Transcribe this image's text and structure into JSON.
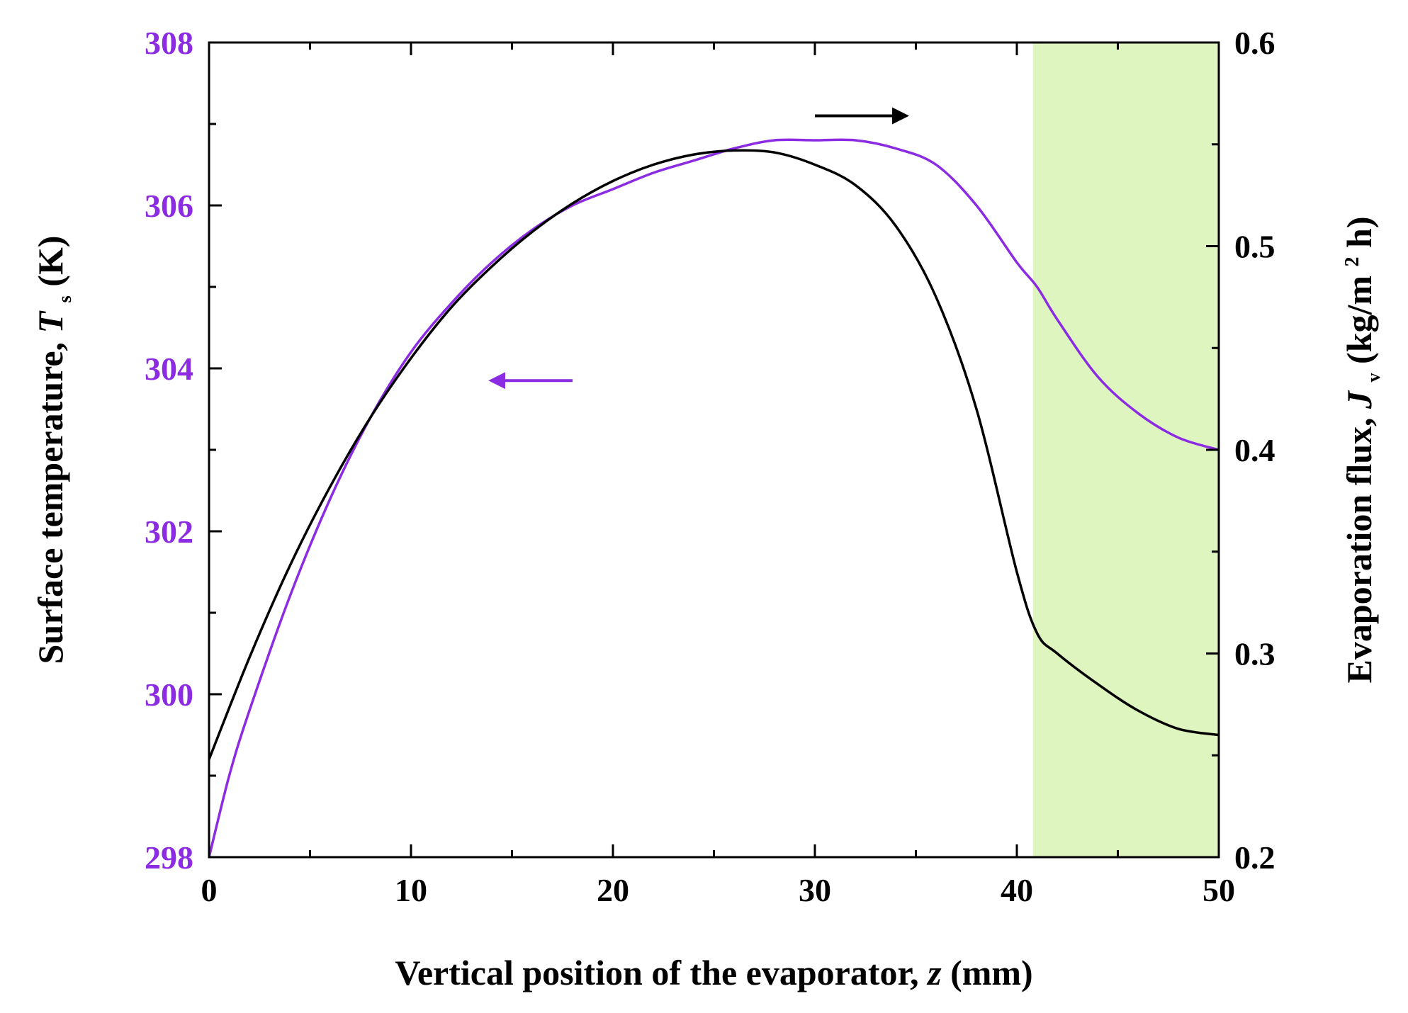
{
  "chart_data": {
    "type": "line",
    "title": "",
    "x_axis": {
      "label_prefix": "Vertical position of the evaporator, ",
      "label_var": "z",
      "label_suffix": " (mm)",
      "range": [
        0,
        50
      ],
      "ticks": [
        0,
        10,
        20,
        30,
        40,
        50
      ],
      "minor_ticks": [
        5,
        15,
        25,
        35,
        45
      ]
    },
    "y_left": {
      "label_prefix": "Surface temperature, ",
      "label_var": "T",
      "label_sub": "s",
      "label_suffix": " (K)",
      "range": [
        298,
        308
      ],
      "ticks": [
        298,
        300,
        302,
        304,
        306,
        308
      ],
      "minor_ticks": [
        299,
        301,
        303,
        305,
        307
      ],
      "color": "#8B2BE2"
    },
    "y_right": {
      "label_prefix": "Evaporation flux, ",
      "label_var": "J",
      "label_sub": "v",
      "label_suffix_a": " (kg/m",
      "label_sup": "2",
      "label_suffix_b": " h)",
      "range": [
        0.2,
        0.6
      ],
      "ticks": [
        0.2,
        0.3,
        0.4,
        0.5,
        0.6
      ],
      "tick_labels": [
        "0.2",
        "0.3",
        "0.4",
        "0.5",
        "0.6"
      ],
      "minor_ticks": [
        0.25,
        0.35,
        0.45,
        0.55
      ],
      "color": "#000000"
    },
    "shaded_region": {
      "x": [
        40.8,
        50
      ],
      "color": "#dff5c0"
    },
    "series": [
      {
        "axis": "left",
        "color": "#8B2BE2",
        "x": [
          0,
          1,
          2,
          4,
          6,
          8,
          10,
          12,
          14,
          16,
          18,
          20,
          22,
          24,
          26,
          28,
          30,
          32,
          34,
          36,
          38,
          40,
          41,
          42,
          44,
          46,
          48,
          50
        ],
        "y": [
          298.0,
          299.0,
          299.8,
          301.2,
          302.4,
          303.4,
          304.2,
          304.8,
          305.3,
          305.7,
          306.0,
          306.2,
          306.4,
          306.55,
          306.7,
          306.8,
          306.8,
          306.8,
          306.7,
          306.5,
          306.0,
          305.3,
          305.0,
          304.6,
          303.9,
          303.45,
          303.15,
          303.0
        ]
      },
      {
        "axis": "right",
        "color": "#000000",
        "x": [
          0,
          2,
          4,
          6,
          8,
          10,
          12,
          14,
          16,
          18,
          20,
          22,
          24,
          26,
          28,
          30,
          32,
          34,
          36,
          38,
          40,
          41,
          42,
          44,
          46,
          48,
          50
        ],
        "y": [
          0.248,
          0.298,
          0.343,
          0.382,
          0.416,
          0.445,
          0.47,
          0.49,
          0.507,
          0.521,
          0.532,
          0.54,
          0.545,
          0.547,
          0.546,
          0.54,
          0.53,
          0.51,
          0.475,
          0.42,
          0.34,
          0.31,
          0.3,
          0.285,
          0.272,
          0.263,
          0.26
        ]
      }
    ],
    "annotations": [
      {
        "type": "arrow",
        "direction": "left",
        "color": "#8B2BE2",
        "x": [
          18,
          14
        ],
        "axis": "left",
        "y": 303.85
      },
      {
        "type": "arrow",
        "direction": "right",
        "color": "#000000",
        "x": [
          30,
          34.5
        ],
        "axis": "right",
        "y": 0.564
      }
    ]
  }
}
